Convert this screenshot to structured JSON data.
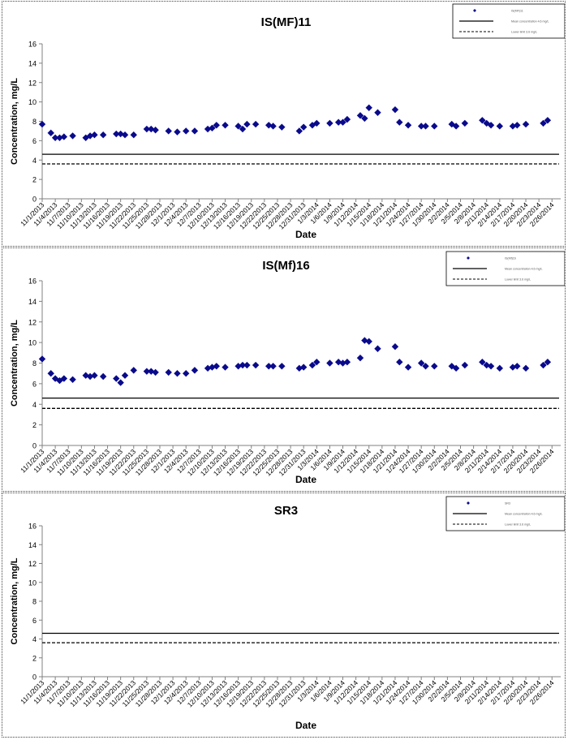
{
  "colors": {
    "series": "#0a0a8c",
    "axis": "#808080",
    "text": "#000000"
  },
  "charts": [
    {
      "title": "IS(MF)11",
      "legend": [
        "IS(MF)11",
        "Mean concentration 4.6 mg/L",
        "Lower limit 3.6 mg/L"
      ]
    },
    {
      "title": "IS(Mf)16",
      "legend": [
        "IS(Mf)16",
        "Mean concentration 4.6 mg/L",
        "Lower limit 3.6 mg/L"
      ]
    },
    {
      "title": "SR3",
      "legend": [
        "SR3",
        "Mean concentration 4.6 mg/L",
        "Lower limit 3.6 mg/L"
      ]
    }
  ],
  "chart_data": [
    {
      "type": "scatter",
      "title": "IS(MF)11",
      "xlabel": "Date",
      "ylabel": "Concentration, mg/L",
      "ylim": [
        0,
        16
      ],
      "yticks": [
        "0",
        "2",
        "4",
        "6",
        "8",
        "10",
        "12",
        "14",
        "16"
      ],
      "xticks": [
        "11/1/2013",
        "11/4/2013",
        "11/7/2013",
        "11/10/2013",
        "11/13/2013",
        "11/16/2013",
        "11/19/2013",
        "11/22/2013",
        "11/25/2013",
        "11/28/2013",
        "12/1/2013",
        "12/4/2013",
        "12/7/2013",
        "12/10/2013",
        "12/13/2013",
        "12/16/2013",
        "12/19/2013",
        "12/22/2013",
        "12/25/2013",
        "12/28/2013",
        "12/31/2013",
        "1/3/2014",
        "1/6/2014",
        "1/9/2014",
        "1/12/2014",
        "1/15/2014",
        "1/18/2014",
        "1/21/2014",
        "1/24/2014",
        "1/27/2014",
        "1/30/2014",
        "2/2/2014",
        "2/5/2014",
        "2/8/2014",
        "2/11/2014",
        "2/14/2014",
        "2/17/2014",
        "2/20/2014",
        "2/23/2014",
        "2/26/2014"
      ],
      "x_start": "11/1/2013",
      "x_end": "2/28/2014",
      "legend_position": "top-right",
      "grid": false,
      "series": [
        {
          "name": "IS(MF)11",
          "marker": "diamond",
          "x": [
            "11/1/2013",
            "11/3/2013",
            "11/4/2013",
            "11/5/2013",
            "11/6/2013",
            "11/8/2013",
            "11/11/2013",
            "11/12/2013",
            "11/13/2013",
            "11/15/2013",
            "11/18/2013",
            "11/19/2013",
            "11/20/2013",
            "11/22/2013",
            "11/25/2013",
            "11/26/2013",
            "11/27/2013",
            "11/30/2013",
            "12/2/2013",
            "12/4/2013",
            "12/6/2013",
            "12/9/2013",
            "12/10/2013",
            "12/11/2013",
            "12/13/2013",
            "12/16/2013",
            "12/17/2013",
            "12/18/2013",
            "12/20/2013",
            "12/23/2013",
            "12/24/2013",
            "12/26/2013",
            "12/30/2013",
            "12/31/2013",
            "1/2/2014",
            "1/3/2014",
            "1/6/2014",
            "1/8/2014",
            "1/9/2014",
            "1/10/2014",
            "1/13/2014",
            "1/14/2014",
            "1/15/2014",
            "1/17/2014",
            "1/21/2014",
            "1/22/2014",
            "1/24/2014",
            "1/27/2014",
            "1/28/2014",
            "1/30/2014",
            "2/3/2014",
            "2/4/2014",
            "2/6/2014",
            "2/10/2014",
            "2/11/2014",
            "2/12/2014",
            "2/14/2014",
            "2/17/2014",
            "2/18/2014",
            "2/20/2014",
            "2/24/2014",
            "2/25/2014"
          ],
          "y": [
            7.7,
            6.8,
            6.3,
            6.3,
            6.4,
            6.5,
            6.3,
            6.5,
            6.6,
            6.6,
            6.7,
            6.7,
            6.6,
            6.6,
            7.2,
            7.2,
            7.1,
            7.0,
            6.9,
            7.0,
            7.0,
            7.2,
            7.3,
            7.6,
            7.6,
            7.5,
            7.2,
            7.7,
            7.7,
            7.6,
            7.5,
            7.4,
            7.0,
            7.4,
            7.6,
            7.8,
            7.8,
            7.9,
            7.9,
            8.2,
            8.6,
            8.3,
            9.4,
            8.9,
            9.2,
            7.9,
            7.6,
            7.5,
            7.5,
            7.5,
            7.7,
            7.5,
            7.8,
            8.1,
            7.8,
            7.6,
            7.5,
            7.5,
            7.6,
            7.7,
            7.8,
            8.1
          ]
        }
      ],
      "reference_lines": [
        {
          "label": "Mean concentration 4.6 mg/L",
          "y": 4.6,
          "style": "solid"
        },
        {
          "label": "Lower limit 3.6 mg/L",
          "y": 3.6,
          "style": "dashed"
        }
      ]
    },
    {
      "type": "scatter",
      "title": "IS(Mf)16",
      "xlabel": "Date",
      "ylabel": "Concentration, mg/L",
      "ylim": [
        0,
        16
      ],
      "yticks": [
        "0",
        "2",
        "4",
        "6",
        "8",
        "10",
        "12",
        "14",
        "16"
      ],
      "xticks": [
        "11/1/2013",
        "11/4/2013",
        "11/7/2013",
        "11/10/2013",
        "11/13/2013",
        "11/16/2013",
        "11/19/2013",
        "11/22/2013",
        "11/25/2013",
        "11/28/2013",
        "12/1/2013",
        "12/4/2013",
        "12/7/2013",
        "12/10/2013",
        "12/13/2013",
        "12/16/2013",
        "12/19/2013",
        "12/22/2013",
        "12/25/2013",
        "12/28/2013",
        "12/31/2013",
        "1/3/2014",
        "1/6/2014",
        "1/9/2014",
        "1/12/2014",
        "1/15/2014",
        "1/18/2014",
        "1/21/2014",
        "1/24/2014",
        "1/27/2014",
        "1/30/2014",
        "2/2/2014",
        "2/5/2014",
        "2/8/2014",
        "2/11/2014",
        "2/14/2014",
        "2/17/2014",
        "2/20/2014",
        "2/23/2014",
        "2/26/2014"
      ],
      "x_start": "11/1/2013",
      "x_end": "2/28/2014",
      "legend_position": "top-right",
      "grid": false,
      "series": [
        {
          "name": "IS(Mf)16",
          "marker": "diamond",
          "x": [
            "11/1/2013",
            "11/3/2013",
            "11/4/2013",
            "11/5/2013",
            "11/6/2013",
            "11/8/2013",
            "11/11/2013",
            "11/12/2013",
            "11/13/2013",
            "11/15/2013",
            "11/18/2013",
            "11/19/2013",
            "11/20/2013",
            "11/22/2013",
            "11/25/2013",
            "11/26/2013",
            "11/27/2013",
            "11/30/2013",
            "12/2/2013",
            "12/4/2013",
            "12/6/2013",
            "12/9/2013",
            "12/10/2013",
            "12/11/2013",
            "12/13/2013",
            "12/16/2013",
            "12/17/2013",
            "12/18/2013",
            "12/20/2013",
            "12/23/2013",
            "12/24/2013",
            "12/26/2013",
            "12/30/2013",
            "12/31/2013",
            "1/2/2014",
            "1/3/2014",
            "1/6/2014",
            "1/8/2014",
            "1/9/2014",
            "1/10/2014",
            "1/13/2014",
            "1/14/2014",
            "1/15/2014",
            "1/17/2014",
            "1/21/2014",
            "1/22/2014",
            "1/24/2014",
            "1/27/2014",
            "1/28/2014",
            "1/30/2014",
            "2/3/2014",
            "2/4/2014",
            "2/6/2014",
            "2/10/2014",
            "2/11/2014",
            "2/12/2014",
            "2/14/2014",
            "2/17/2014",
            "2/18/2014",
            "2/20/2014",
            "2/24/2014",
            "2/25/2014"
          ],
          "y": [
            8.4,
            7.0,
            6.5,
            6.3,
            6.5,
            6.4,
            6.8,
            6.7,
            6.8,
            6.7,
            6.5,
            6.1,
            6.8,
            7.3,
            7.2,
            7.2,
            7.1,
            7.1,
            7.0,
            7.0,
            7.3,
            7.5,
            7.6,
            7.7,
            7.6,
            7.7,
            7.8,
            7.8,
            7.8,
            7.7,
            7.7,
            7.7,
            7.5,
            7.6,
            7.8,
            8.1,
            8.0,
            8.1,
            8.0,
            8.1,
            8.5,
            10.2,
            10.1,
            9.4,
            9.6,
            8.1,
            7.6,
            8.0,
            7.7,
            7.7,
            7.7,
            7.5,
            7.8,
            8.1,
            7.8,
            7.7,
            7.5,
            7.6,
            7.7,
            7.5,
            7.8,
            8.1
          ]
        }
      ],
      "reference_lines": [
        {
          "label": "Mean concentration 4.6 mg/L",
          "y": 4.6,
          "style": "solid"
        },
        {
          "label": "Lower limit 3.6 mg/L",
          "y": 3.6,
          "style": "dashed"
        }
      ]
    },
    {
      "type": "scatter",
      "title": "SR3",
      "xlabel": "Date",
      "ylabel": "Concentration, mg/L",
      "ylim": [
        0,
        16
      ],
      "yticks": [
        "0",
        "2",
        "4",
        "6",
        "8",
        "10",
        "12",
        "14",
        "16"
      ],
      "xticks": [
        "11/1/2013",
        "11/4/2013",
        "11/7/2013",
        "11/10/2013",
        "11/13/2013",
        "11/16/2013",
        "11/19/2013",
        "11/22/2013",
        "11/25/2013",
        "11/28/2013",
        "12/1/2013",
        "12/4/2013",
        "12/7/2013",
        "12/10/2013",
        "12/13/2013",
        "12/16/2013",
        "12/19/2013",
        "12/22/2013",
        "12/25/2013",
        "12/28/2013",
        "12/31/2013",
        "1/3/2014",
        "1/6/2014",
        "1/9/2014",
        "1/12/2014",
        "1/15/2014",
        "1/18/2014",
        "1/21/2014",
        "1/24/2014",
        "1/27/2014",
        "1/30/2014",
        "2/2/2014",
        "2/5/2014",
        "2/8/2014",
        "2/11/2014",
        "2/14/2014",
        "2/17/2014",
        "2/20/2014",
        "2/23/2014",
        "2/26/2014"
      ],
      "x_start": "11/1/2013",
      "x_end": "2/28/2014",
      "legend_position": "top-right",
      "grid": false,
      "series": [
        {
          "name": "SR3",
          "marker": "diamond",
          "x": [],
          "y": []
        }
      ],
      "reference_lines": [
        {
          "label": "Mean concentration 4.6 mg/L",
          "y": 4.6,
          "style": "solid"
        },
        {
          "label": "Lower limit 3.6 mg/L",
          "y": 3.6,
          "style": "dashed"
        }
      ]
    }
  ]
}
